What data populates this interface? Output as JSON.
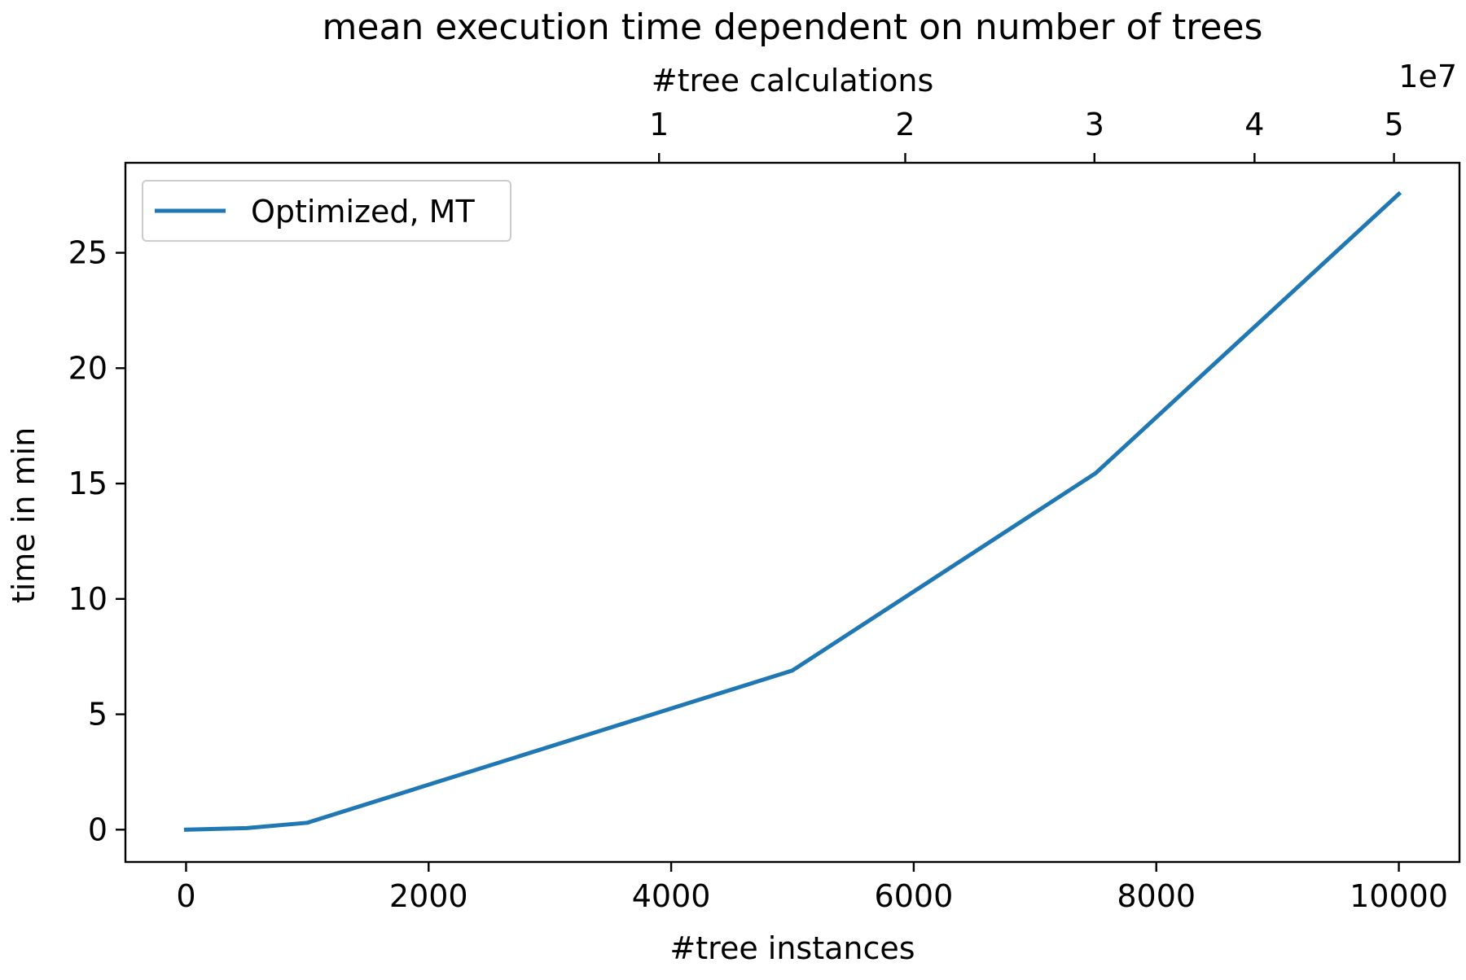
{
  "chart_data": {
    "type": "line",
    "title": "mean execution time dependent on number of trees",
    "xlabel": "#tree instances",
    "ylabel": "time in min",
    "xlim": [
      -500,
      10500
    ],
    "ylim": [
      -1.4,
      28.9
    ],
    "xticks": [
      0,
      2000,
      4000,
      6000,
      8000,
      10000
    ],
    "xtick_labels": [
      "0",
      "2000",
      "4000",
      "6000",
      "8000",
      "10000"
    ],
    "yticks": [
      0,
      5,
      10,
      15,
      20,
      25
    ],
    "ytick_labels": [
      "0",
      "5",
      "10",
      "15",
      "20",
      "25"
    ],
    "secondary_x": {
      "label": "#tree calculations",
      "offset_text": "1e7",
      "ticks": [
        {
          "at_x": 3900,
          "label": "1"
        },
        {
          "at_x": 5930,
          "label": "2"
        },
        {
          "at_x": 7490,
          "label": "3"
        },
        {
          "at_x": 8810,
          "label": "4"
        },
        {
          "at_x": 9960,
          "label": "5"
        }
      ]
    },
    "grid": false,
    "legend_position": "top-left",
    "series": [
      {
        "name": "Optimized, MT",
        "color": "#1f77b4",
        "x": [
          0,
          500,
          1000,
          5000,
          7500,
          10000
        ],
        "y": [
          0.0,
          0.07,
          0.3,
          6.9,
          15.45,
          27.55
        ]
      }
    ]
  }
}
